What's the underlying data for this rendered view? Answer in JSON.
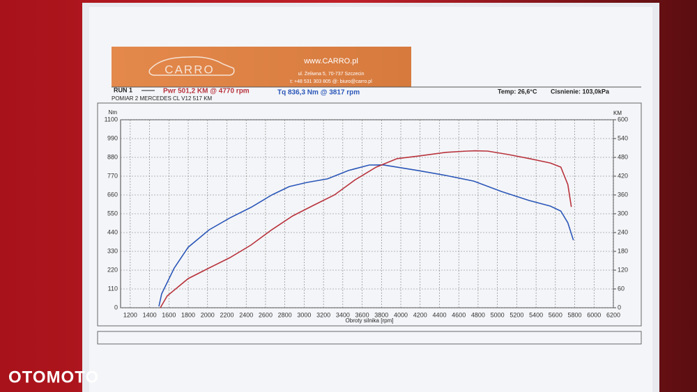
{
  "header": {
    "logo": "CARRO",
    "website": "www.CARRO.pl",
    "address": "ul. Żeliwna 5, 70-737 Szczecin",
    "contact": "t: +48 531 303 805   @: biuro@carro.pl"
  },
  "watermark": "OTOMOTO",
  "chart_data": {
    "type": "line",
    "run_label": "RUN 1",
    "power_label": "Pwr  501,2 KM @ 4770 rpm",
    "torque_label": "Tq 836,3 Nm @ 3817 rpm",
    "temperature": "Temp: 26,6°C",
    "pressure": "Cisnienie: 103,0kPa",
    "subtitle": "POMIAR 2 MERCEDES CL V12 517 KM",
    "y_label": "Nm",
    "y2_label": "KM",
    "x_label": "Obroty silnika [rpm]",
    "xlim": [
      1100,
      6200
    ],
    "xticks": [
      1200,
      1400,
      1600,
      1800,
      2000,
      2200,
      2400,
      2600,
      2800,
      3000,
      3200,
      3400,
      3600,
      3800,
      4000,
      4200,
      4400,
      4600,
      4800,
      5000,
      5200,
      5400,
      5600,
      5800,
      6000,
      6200
    ],
    "ylim": [
      0,
      1100
    ],
    "yticks": [
      0,
      110,
      220,
      330,
      440,
      550,
      660,
      770,
      880,
      990,
      1100
    ],
    "y2lim": [
      0,
      600
    ],
    "y2ticks": [
      0,
      60,
      120,
      180,
      240,
      300,
      360,
      420,
      480,
      540,
      600
    ],
    "grid": true,
    "series": [
      {
        "color": "#2a56b8",
        "axis": "y",
        "x": [
          1497,
          1525,
          1655,
          1800,
          2016,
          2232,
          2449,
          2665,
          2845,
          3025,
          3241,
          3458,
          3674,
          3817,
          4179,
          4467,
          4755,
          5044,
          5332,
          5548,
          5656,
          5729,
          5787
        ],
        "values": [
          8,
          81,
          232,
          354,
          456,
          526,
          587,
          660,
          709,
          733,
          754,
          803,
          835,
          836,
          803,
          774,
          741,
          680,
          627,
          595,
          566,
          497,
          395
        ]
      },
      {
        "color": "#b8323c",
        "axis": "y2",
        "x": [
          1511,
          1583,
          1800,
          2016,
          2232,
          2449,
          2665,
          2881,
          3097,
          3313,
          3530,
          3746,
          3962,
          4179,
          4467,
          4683,
          4770,
          4899,
          5116,
          5332,
          5548,
          5656,
          5729,
          5765
        ],
        "values": [
          0,
          38,
          93,
          127,
          160,
          200,
          249,
          293,
          327,
          360,
          409,
          449,
          476,
          484,
          496,
          500,
          501,
          500,
          489,
          476,
          462,
          449,
          393,
          322
        ]
      }
    ]
  }
}
